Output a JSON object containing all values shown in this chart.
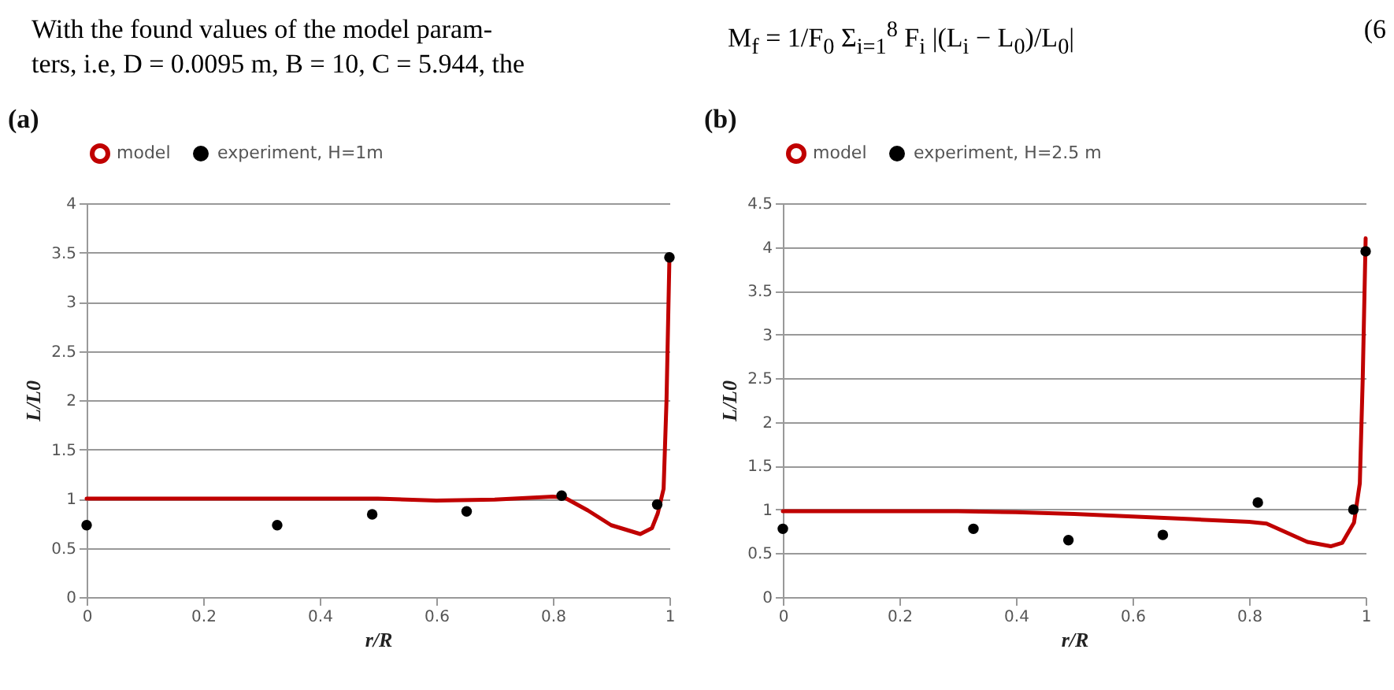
{
  "chart_data": [
    {
      "type": "line",
      "title": "(a)",
      "xlabel": "r/R",
      "ylabel": "L/L0",
      "annotations": [
        "With the found values of the model param-",
        "ters, i.e, D = 0.0095 m, B = 10, C = 5.944, the"
      ],
      "xlim": [
        0,
        1
      ],
      "xticks": [
        0,
        0.2,
        0.4,
        0.6,
        0.8,
        1
      ],
      "ylim": [
        0,
        4
      ],
      "yticks": [
        0,
        0.5,
        1,
        1.5,
        2,
        2.5,
        3,
        3.5,
        4
      ],
      "grid": "y",
      "legend": "top",
      "series": [
        {
          "name": "model",
          "color": "#c00000",
          "x": [
            0,
            0.1,
            0.2,
            0.3,
            0.4,
            0.5,
            0.6,
            0.7,
            0.8,
            0.82,
            0.86,
            0.9,
            0.95,
            0.97,
            0.98,
            0.99,
            0.995,
            1.0
          ],
          "values": [
            1,
            1,
            1,
            1,
            1,
            1,
            0.98,
            0.99,
            1.02,
            1.01,
            0.88,
            0.73,
            0.64,
            0.7,
            0.85,
            1.1,
            2.0,
            3.45
          ]
        },
        {
          "name": "experiment, H=1m",
          "type": "scatter",
          "marker": "circle",
          "color": "#000000",
          "x": [
            0,
            0.327,
            0.49,
            0.652,
            0.815,
            0.979,
            1.0
          ],
          "values": [
            0.73,
            0.73,
            0.84,
            0.87,
            1.03,
            0.94,
            3.45
          ]
        }
      ]
    },
    {
      "type": "line",
      "title": "(b)",
      "xlabel": "r/R",
      "ylabel": "L/L0",
      "annotations": [
        "M$_{f}$ = 1/F$_{0}$ Σ$_{i=1}$$^{8}$ F$_{i}$ |(L$_{i}$ − L$_{0}$)/L$_{0}$|",
        "(6"
      ],
      "xlim": [
        0,
        1
      ],
      "xticks": [
        0,
        0.2,
        0.4,
        0.6,
        0.8,
        1
      ],
      "ylim": [
        0,
        4.5
      ],
      "yticks": [
        0,
        0.5,
        1,
        1.5,
        2,
        2.5,
        3,
        3.5,
        4,
        4.5
      ],
      "grid": "y",
      "legend": "top",
      "series": [
        {
          "name": "model",
          "color": "#c00000",
          "x": [
            0,
            0.1,
            0.2,
            0.3,
            0.4,
            0.5,
            0.6,
            0.7,
            0.8,
            0.83,
            0.87,
            0.9,
            0.94,
            0.96,
            0.98,
            0.99,
            0.995,
            1.0
          ],
          "values": [
            0.98,
            0.98,
            0.98,
            0.98,
            0.97,
            0.95,
            0.92,
            0.89,
            0.86,
            0.84,
            0.72,
            0.63,
            0.58,
            0.62,
            0.85,
            1.3,
            2.5,
            4.1
          ]
        },
        {
          "name": "experiment, H=2.5 m",
          "type": "scatter",
          "marker": "circle",
          "color": "#000000",
          "x": [
            0,
            0.327,
            0.49,
            0.652,
            0.815,
            0.979,
            1.0
          ],
          "values": [
            0.78,
            0.78,
            0.65,
            0.71,
            1.08,
            1.0,
            3.95
          ]
        }
      ]
    }
  ]
}
